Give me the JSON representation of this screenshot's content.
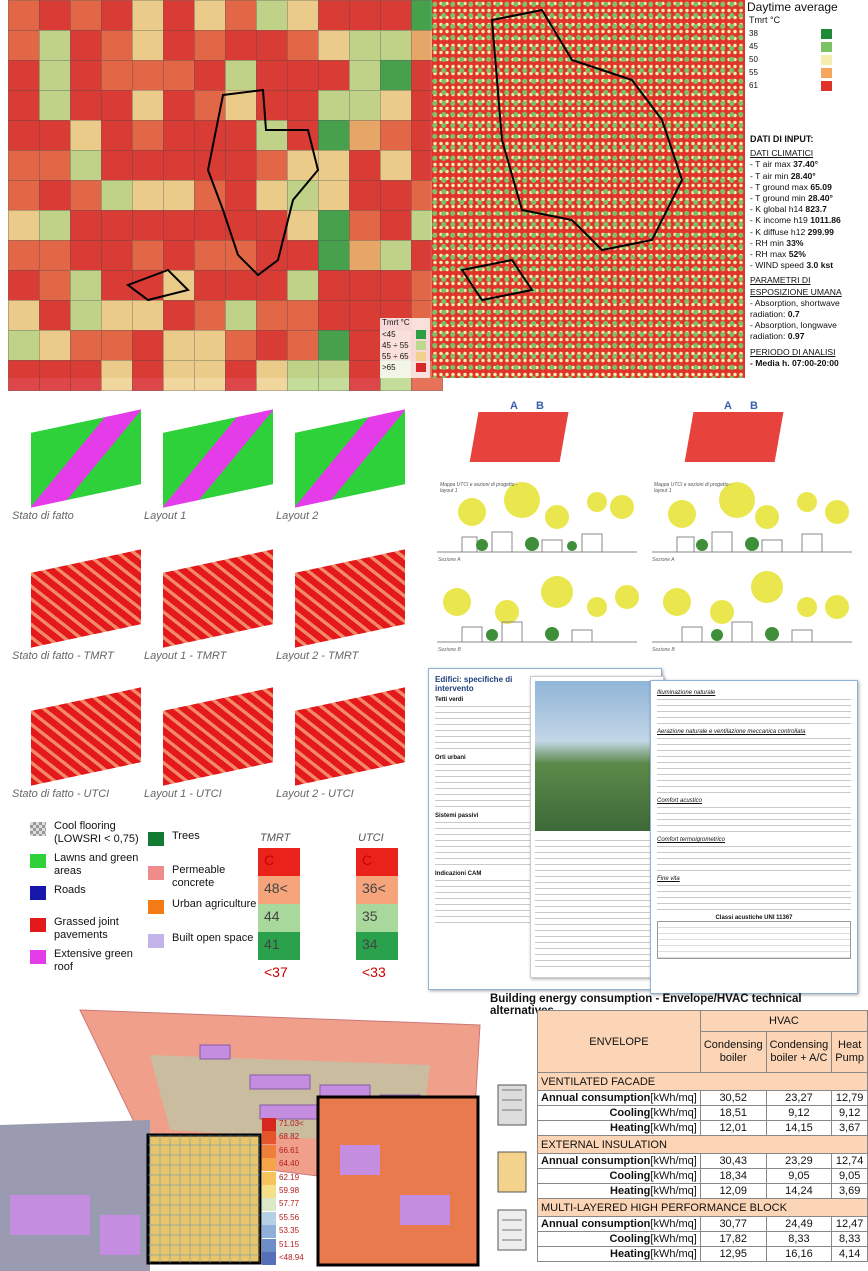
{
  "map_left": {
    "legend_title": "Tmrt °C",
    "legend": [
      {
        "label": "<45",
        "color": "#2e9e45"
      },
      {
        "label": "45 ÷ 55",
        "color": "#bcd88a"
      },
      {
        "label": "55 ÷ 65",
        "color": "#efd08d"
      },
      {
        "label": ">65",
        "color": "#d8282a"
      }
    ]
  },
  "map_right": {
    "title": "Daytime average",
    "legend_title": "Tmrt °C",
    "legend": [
      {
        "label": "38",
        "color": "#1f8b3a"
      },
      {
        "label": "45",
        "color": "#7cc265"
      },
      {
        "label": "50",
        "color": "#f2ecae"
      },
      {
        "label": "55",
        "color": "#f5a55c"
      },
      {
        "label": "61",
        "color": "#e0342a"
      }
    ]
  },
  "input_data": {
    "title": "DATI DI INPUT:",
    "climate_heading": "DATI CLIMATICI",
    "climate": [
      [
        "- T air max",
        "37.40°"
      ],
      [
        "- T air min",
        "28.40°"
      ],
      [
        "- T ground max",
        "65.09"
      ],
      [
        "- T ground min",
        "28.40°"
      ],
      [
        "- K global h14",
        "823.7"
      ],
      [
        "- K income h19",
        "1011.86"
      ],
      [
        "- K diffuse h12",
        "299.99"
      ],
      [
        "- RH min",
        "33%"
      ],
      [
        "- RH max",
        "52%"
      ],
      [
        "- WIND speed",
        "3.0 kst"
      ]
    ],
    "exposure_heading": "PARAMETRI DI ESPOSIZIONE UMANA",
    "exposure": [
      [
        "- Absorption, shortwave radiation:",
        "0.7"
      ],
      [
        "- Absorption, longwave radiation:",
        "0.97"
      ]
    ],
    "period_heading": "PERIODO DI ANALISI",
    "period": "- Media h. 07:00-20:00"
  },
  "layouts": {
    "captions": [
      "Stato di fatto",
      "Layout 1",
      "Layout 2",
      "Stato di fatto - TMRT",
      "Layout 1 - TMRT",
      "Layout 2 - TMRT",
      "Stato di fatto - UTCI",
      "Layout 1 - UTCI",
      "Layout 2 - UTCI"
    ]
  },
  "materials_legend": [
    {
      "label": "Cool flooring (LOWSRI < 0,75)",
      "color": "#b8b8b8"
    },
    {
      "label": "Lawns and green areas",
      "color": "#2ed13a"
    },
    {
      "label": "Roads",
      "color": "#1616a8"
    },
    {
      "label": "Grassed joint pavements",
      "color": "#e3191c"
    },
    {
      "label": "Extensive green roof",
      "color": "#e43ce8"
    },
    {
      "label": "Trees",
      "color": "#137a34"
    },
    {
      "label": "Permeable concrete",
      "color": "#f08b8b"
    },
    {
      "label": "Urban agriculture",
      "color": "#f47a16"
    },
    {
      "label": "Built open space",
      "color": "#c3b5ea"
    }
  ],
  "tmrt_scale": {
    "title": "TMRT",
    "labels": [
      "C",
      "48<",
      "44",
      "41",
      "<37"
    ],
    "colors": [
      "#e9231c",
      "#f5a47c",
      "#a8d89b",
      "#2aa24b"
    ]
  },
  "utci_scale": {
    "title": "UTCI",
    "labels": [
      "C",
      "36<",
      "35",
      "34",
      "<33"
    ],
    "colors": [
      "#e9231c",
      "#f5a47c",
      "#a8d89b",
      "#2aa24b"
    ]
  },
  "sections": {
    "map_caption": "Mappa UTCI e sezioni di progetto - layout 1",
    "markers": [
      "A",
      "B"
    ],
    "labels": [
      "Sezione A",
      "Sezione A",
      "Sezione B",
      "Sezione B"
    ]
  },
  "document": {
    "heading": "Edifici: specifiche di intervento",
    "items": [
      "Tetti verdi",
      "Orti urbani",
      "Sistemi passivi",
      "Indicazioni CAM"
    ],
    "right_items": [
      "Illuminazione naturale",
      "Aerazione naturale e ventilazione meccanica controllata",
      "Comfort acustico",
      "Comfort termoigrometrico",
      "Fine vita"
    ],
    "table_title": "Classi acustiche UNI 11367"
  },
  "scale_3d": {
    "labels": [
      "71.03<",
      "68.82",
      "66.61",
      "64.40",
      "62.19",
      "59.98",
      "57.77",
      "55.56",
      "53.35",
      "51.15",
      "<48.94"
    ],
    "colors": [
      "#d7261e",
      "#e4552c",
      "#ee7e3a",
      "#f5a44a",
      "#f7c45c",
      "#f5e08a",
      "#dbe9c8",
      "#b5cfe4",
      "#8fb0d9",
      "#6e8ec9",
      "#5570b9"
    ]
  },
  "table": {
    "title": "Building energy consumption - Envelope/HVAC technical alternatives",
    "envelope_header": "ENVELOPE",
    "hvac_header": "HVAC",
    "columns": [
      "Condensing boiler",
      "Condensing boiler + A/C",
      "Heat Pump"
    ],
    "groups": [
      {
        "name": "VENTILATED FACADE",
        "rows": [
          {
            "label": "Annual consumption",
            "unit": "[kWh/mq]",
            "values": [
              "30,52",
              "23,27",
              "12,79"
            ]
          },
          {
            "label": "Cooling",
            "unit": "[kWh/mq]",
            "values": [
              "18,51",
              "9,12",
              "9,12"
            ]
          },
          {
            "label": "Heating",
            "unit": "[kWh/mq]",
            "values": [
              "12,01",
              "14,15",
              "3,67"
            ]
          }
        ]
      },
      {
        "name": "EXTERNAL INSULATION",
        "rows": [
          {
            "label": "Annual consumption",
            "unit": "[kWh/mq]",
            "values": [
              "30,43",
              "23,29",
              "12,74"
            ]
          },
          {
            "label": "Cooling",
            "unit": "[kWh/mq]",
            "values": [
              "18,34",
              "9,05",
              "9,05"
            ]
          },
          {
            "label": "Heating",
            "unit": "[kWh/mq]",
            "values": [
              "12,09",
              "14,24",
              "3,69"
            ]
          }
        ]
      },
      {
        "name": "MULTI-LAYERED HIGH PERFORMANCE BLOCK",
        "rows": [
          {
            "label": "Annual consumption",
            "unit": "[kWh/mq]",
            "values": [
              "30,77",
              "24,49",
              "12,47"
            ]
          },
          {
            "label": "Cooling",
            "unit": "[kWh/mq]",
            "values": [
              "17,82",
              "8,33",
              "8,33"
            ]
          },
          {
            "label": "Heating",
            "unit": "[kWh/mq]",
            "values": [
              "12,95",
              "16,16",
              "4,14"
            ]
          }
        ]
      }
    ]
  }
}
